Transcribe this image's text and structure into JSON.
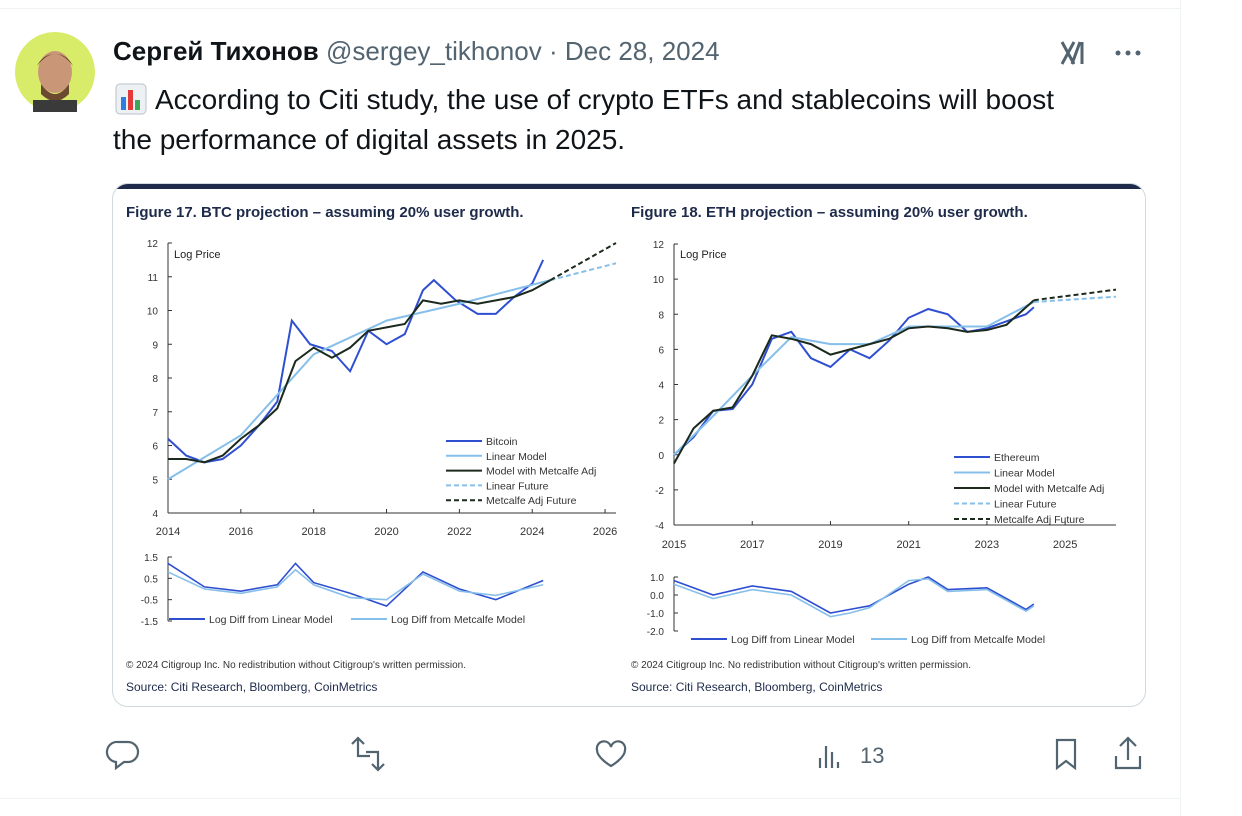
{
  "tweet": {
    "author_name": "Сергей Тихонов",
    "handle": "@sergey_tikhonov",
    "separator": "·",
    "date": "Dec 28, 2024",
    "text": "According to Citi study, the use of crypto ETFs and stablecoins will boost the performance of digital assets in 2025.",
    "views": 13
  },
  "figures": [
    {
      "title": "Figure 17. BTC projection – assuming 20% user growth.",
      "y_label": "Log Price",
      "main": {
        "type": "line",
        "xlim": [
          2014,
          2026.3
        ],
        "xticks": [
          2014,
          2016,
          2018,
          2020,
          2022,
          2024,
          2026
        ],
        "ylim": [
          4,
          12
        ],
        "yticks": [
          4,
          5,
          6,
          7,
          8,
          9,
          10,
          11,
          12
        ],
        "series": [
          {
            "name": "Bitcoin",
            "color": "#2f4fd1",
            "dash": false,
            "x": [
              2014,
              2014.5,
              2015,
              2015.5,
              2016,
              2016.5,
              2017,
              2017.4,
              2017.9,
              2018.5,
              2019,
              2019.5,
              2020,
              2020.5,
              2021,
              2021.3,
              2021.9,
              2022.5,
              2023,
              2023.5,
              2024,
              2024.3
            ],
            "values": [
              6.2,
              5.7,
              5.5,
              5.6,
              6.0,
              6.6,
              7.3,
              9.7,
              9.0,
              8.8,
              8.2,
              9.4,
              9.0,
              9.3,
              10.6,
              10.9,
              10.3,
              9.9,
              9.9,
              10.4,
              10.8,
              11.5
            ]
          },
          {
            "name": "Linear Model",
            "color": "#86bfe9",
            "dash": false,
            "x": [
              2014,
              2016,
              2018,
              2020,
              2022,
              2024.5
            ],
            "values": [
              5.0,
              6.3,
              8.7,
              9.7,
              10.2,
              10.9
            ]
          },
          {
            "name": "Model with Metcalfe Adj",
            "color": "#1b2a1c",
            "dash": false,
            "x": [
              2014,
              2014.5,
              2015,
              2015.5,
              2016,
              2016.5,
              2017,
              2017.5,
              2018,
              2018.5,
              2019,
              2019.5,
              2020,
              2020.5,
              2021,
              2021.5,
              2022,
              2022.5,
              2023,
              2023.5,
              2024,
              2024.5
            ],
            "values": [
              5.6,
              5.6,
              5.5,
              5.7,
              6.2,
              6.6,
              7.1,
              8.5,
              8.9,
              8.6,
              8.9,
              9.4,
              9.5,
              9.6,
              10.3,
              10.2,
              10.3,
              10.2,
              10.3,
              10.4,
              10.6,
              10.9
            ]
          },
          {
            "name": "Linear Future",
            "color": "#86bfe9",
            "dash": true,
            "x": [
              2024.5,
              2026.3
            ],
            "values": [
              10.9,
              11.4
            ]
          },
          {
            "name": "Metcalfe Adj Future",
            "color": "#1b2a1c",
            "dash": true,
            "x": [
              2024.5,
              2026.3
            ],
            "values": [
              10.9,
              12.0
            ]
          }
        ]
      },
      "sub": {
        "type": "line",
        "ylim": [
          -1.5,
          1.5
        ],
        "yticks": [
          1.5,
          0.5,
          -0.5,
          -1.5
        ],
        "series": [
          {
            "name": "Log Diff from Linear Model",
            "color": "#2f4fd1",
            "x": [
              2014,
              2015,
              2016,
              2017,
              2017.5,
              2018,
              2019,
              2020,
              2021,
              2022,
              2023,
              2024.3
            ],
            "values": [
              1.2,
              0.1,
              -0.1,
              0.2,
              1.2,
              0.3,
              -0.2,
              -0.8,
              0.8,
              0,
              -0.5,
              0.4
            ]
          },
          {
            "name": "Log Diff from Metcalfe Model",
            "color": "#86bfe9",
            "x": [
              2014,
              2015,
              2016,
              2017,
              2017.5,
              2018,
              2019,
              2020,
              2021,
              2022,
              2023,
              2024.3
            ],
            "values": [
              0.8,
              0,
              -0.2,
              0.1,
              0.9,
              0.2,
              -0.4,
              -0.5,
              0.7,
              -0.1,
              -0.3,
              0.2
            ]
          }
        ]
      },
      "copyright": "© 2024 Citigroup Inc. No redistribution without Citigroup's written permission.",
      "source": "Source: Citi Research, Bloomberg, CoinMetrics"
    },
    {
      "title": "Figure 18. ETH projection – assuming 20% user growth.",
      "y_label": "Log Price",
      "main": {
        "type": "line",
        "xlim": [
          2015,
          2026.3
        ],
        "xticks": [
          2015,
          2017,
          2019,
          2021,
          2023,
          2025
        ],
        "ylim": [
          -4,
          12
        ],
        "yticks": [
          -4,
          -2,
          0,
          2,
          4,
          6,
          8,
          10,
          12
        ],
        "series": [
          {
            "name": "Ethereum",
            "color": "#2f4fd1",
            "dash": false,
            "x": [
              2015,
              2015.5,
              2016,
              2016.5,
              2017,
              2017.5,
              2018,
              2018.5,
              2019,
              2019.5,
              2020,
              2020.5,
              2021,
              2021.5,
              2022,
              2022.5,
              2023,
              2023.5,
              2024,
              2024.2
            ],
            "values": [
              0,
              1,
              2.5,
              2.6,
              4,
              6.6,
              7.0,
              5.5,
              5.0,
              6.0,
              5.5,
              6.5,
              7.8,
              8.3,
              8.0,
              7.0,
              7.2,
              7.6,
              8.0,
              8.4
            ]
          },
          {
            "name": "Linear Model",
            "color": "#86bfe9",
            "dash": false,
            "x": [
              2015,
              2016,
              2017,
              2018,
              2019,
              2020,
              2021,
              2022,
              2023,
              2024.2
            ],
            "values": [
              0,
              2.2,
              4.5,
              6.7,
              6.3,
              6.3,
              7.3,
              7.3,
              7.3,
              8.7
            ]
          },
          {
            "name": "Model with Metcalfe Adj",
            "color": "#1b2a1c",
            "dash": false,
            "x": [
              2015,
              2015.5,
              2016,
              2016.5,
              2017,
              2017.5,
              2018,
              2018.5,
              2019,
              2019.5,
              2020,
              2020.5,
              2021,
              2021.5,
              2022,
              2022.5,
              2023,
              2023.5,
              2024,
              2024.2
            ],
            "values": [
              -0.5,
              1.5,
              2.5,
              2.7,
              4.5,
              6.8,
              6.6,
              6.3,
              5.7,
              6.0,
              6.3,
              6.6,
              7.2,
              7.3,
              7.2,
              7.0,
              7.1,
              7.4,
              8.4,
              8.8
            ]
          },
          {
            "name": "Linear Future",
            "color": "#86bfe9",
            "dash": true,
            "x": [
              2024.2,
              2026.3
            ],
            "values": [
              8.7,
              9.0
            ]
          },
          {
            "name": "Metcalfe Adj Future",
            "color": "#1b2a1c",
            "dash": true,
            "x": [
              2024.2,
              2026.3
            ],
            "values": [
              8.8,
              9.4
            ]
          }
        ]
      },
      "sub": {
        "type": "line",
        "ylim": [
          -2,
          1
        ],
        "yticks": [
          {
            "value": 1,
            "label": "1.0"
          },
          {
            "value": 0,
            "label": "0.0"
          },
          {
            "value": -1,
            "label": "-1.0"
          },
          {
            "value": -2,
            "label": "-2.0"
          }
        ],
        "series": [
          {
            "name": "Log Diff from Linear Model",
            "color": "#2f4fd1",
            "x": [
              2015,
              2016,
              2017,
              2018,
              2019,
              2019.5,
              2020,
              2021,
              2021.5,
              2022,
              2023,
              2024,
              2024.2
            ],
            "values": [
              0.8,
              0,
              0.5,
              0.2,
              -1.0,
              -0.8,
              -0.6,
              0.6,
              1.0,
              0.3,
              0.4,
              -0.8,
              -0.5
            ]
          },
          {
            "name": "Log Diff from Metcalfe Model",
            "color": "#86bfe9",
            "x": [
              2015,
              2016,
              2017,
              2018,
              2019,
              2019.5,
              2020,
              2021,
              2021.5,
              2022,
              2023,
              2024,
              2024.2
            ],
            "values": [
              0.6,
              -0.2,
              0.3,
              0,
              -1.2,
              -1.0,
              -0.7,
              0.8,
              0.9,
              0.2,
              0.3,
              -0.9,
              -0.6
            ]
          }
        ]
      },
      "copyright": "© 2024 Citigroup Inc. No redistribution without Citigroup's written permission.",
      "source": "Source: Citi Research, Bloomberg, CoinMetrics"
    }
  ]
}
